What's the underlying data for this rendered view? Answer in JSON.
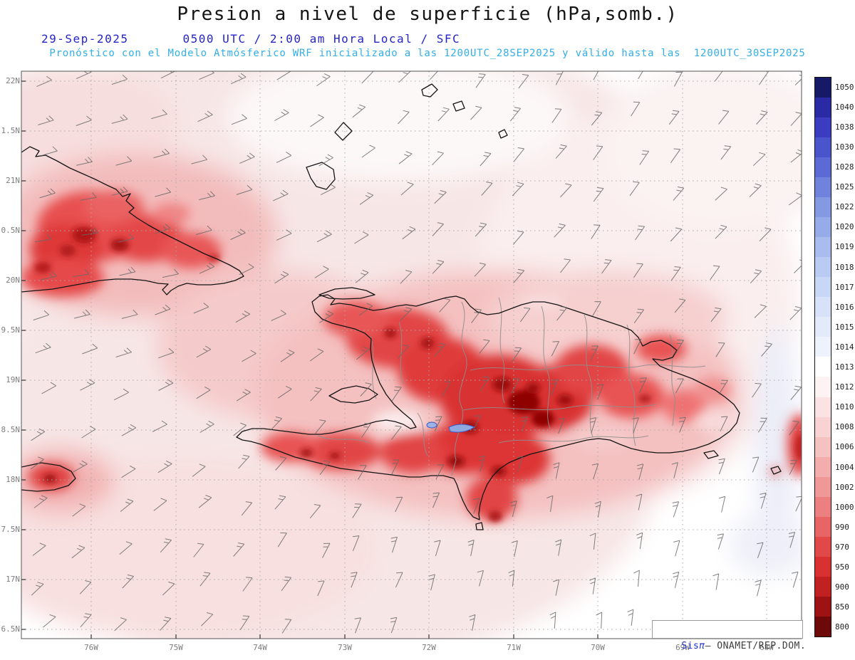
{
  "header": {
    "title": "Presion a nivel de superficie (hPa,somb.)",
    "date": "29-Sep-2025",
    "time": "0500 UTC / 2:00 am Hora Local / SFC",
    "model_line": "Pronóstico con el Modelo Atmósferico WRF inicializado a las 1200UTC_28SEP2025 y válido hasta las  1200UTC_30SEP2025"
  },
  "map": {
    "lat_labels": [
      "22N",
      "1.5N",
      "21N",
      "0.5N",
      "20N",
      "9.5N",
      "19N",
      "8.5N",
      "18N",
      "7.5N",
      "17N",
      "6.5N"
    ],
    "lon_labels": [
      "76W",
      "75W",
      "74W",
      "73W",
      "72W",
      "71W",
      "70W",
      "69W",
      "68W"
    ],
    "colors": {
      "shade_low_pressure_red": "#d93030",
      "shade_dark_core": "#8f0606",
      "shade_light_pink": "#f7e6e6",
      "shade_high_lavender": "#ebedf8",
      "lake_blue": "#8fa8e0",
      "coastline": "#151515",
      "province_border": "#8f8f8f",
      "wind_barb": "#6a6a6a",
      "grid": "#aaaaaa"
    }
  },
  "colorbar": {
    "unit": "hPa",
    "values": [
      "1050",
      "1040",
      "1038",
      "1030",
      "1028",
      "1025",
      "1022",
      "1020",
      "1019",
      "1018",
      "1017",
      "1016",
      "1015",
      "1014",
      "1013",
      "1012",
      "1010",
      "1008",
      "1006",
      "1004",
      "1002",
      "1000",
      "990",
      "970",
      "950",
      "900",
      "850",
      "800"
    ],
    "colors": [
      "#161a66",
      "#2a2aa4",
      "#3c3cc0",
      "#4a55cc",
      "#5b6ad4",
      "#6f83dc",
      "#8399e2",
      "#96ace8",
      "#a8bdee",
      "#b9cbf2",
      "#c9d7f6",
      "#d7e1f8",
      "#e3eafa",
      "#eef2fc",
      "#ffffff",
      "#fdf3f3",
      "#fbe3e3",
      "#f9d3d3",
      "#f6c1c1",
      "#f3adad",
      "#f09797",
      "#ec7f7f",
      "#e76565",
      "#e14949",
      "#d93131",
      "#c12121",
      "#9d1313",
      "#6d0909"
    ]
  },
  "credit": {
    "brand": "Sis",
    "pi": "π",
    "text": "– ONAMET/REP.DOM."
  }
}
